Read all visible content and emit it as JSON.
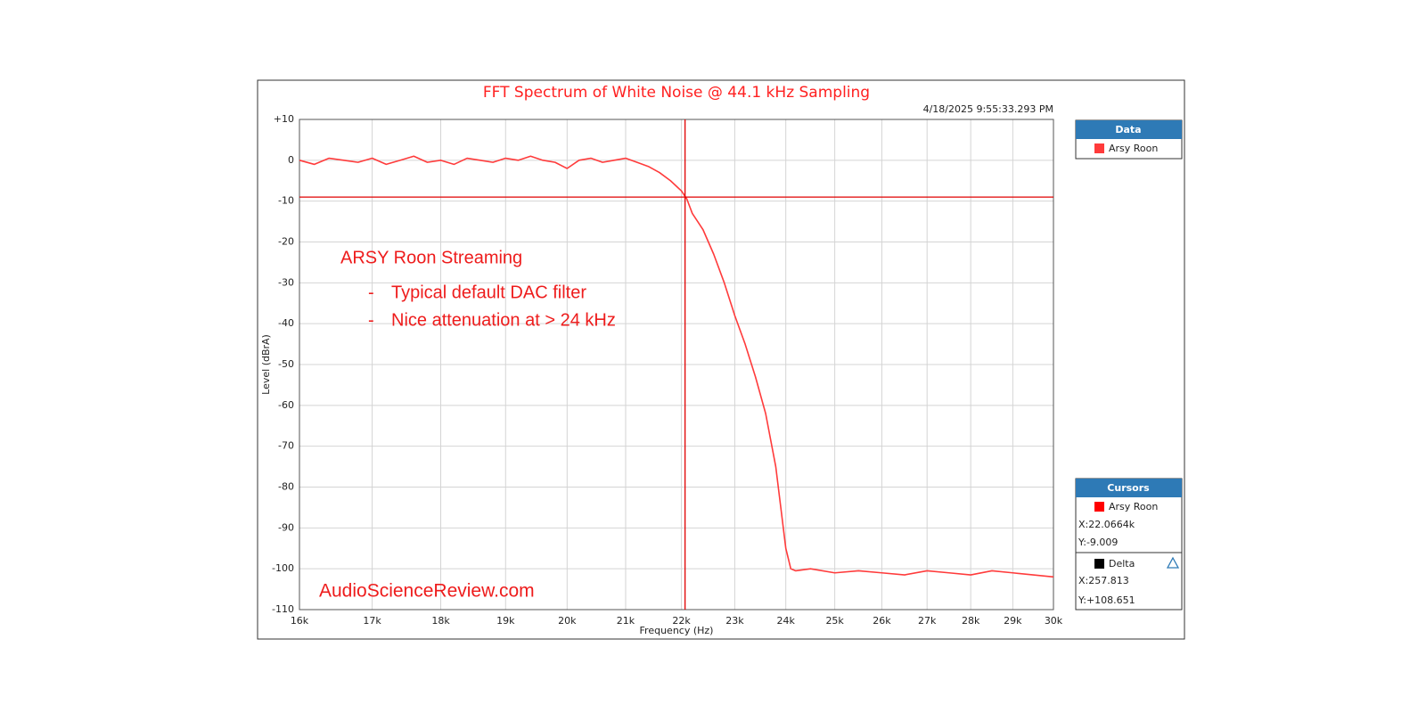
{
  "chart_data": {
    "type": "line",
    "title": "FFT Spectrum of White Noise @ 44.1 kHz Sampling",
    "timestamp": "4/18/2025 9:55:33.293 PM",
    "logo": "AP",
    "xlabel": "Frequency (Hz)",
    "ylabel": "Level (dBrA)",
    "xscale": "log",
    "grid": true,
    "xlim": [
      16000,
      30000
    ],
    "ylim": [
      -110,
      10
    ],
    "xticks": [
      {
        "value": 16000,
        "label": "16k"
      },
      {
        "value": 17000,
        "label": "17k"
      },
      {
        "value": 18000,
        "label": "18k"
      },
      {
        "value": 19000,
        "label": "19k"
      },
      {
        "value": 20000,
        "label": "20k"
      },
      {
        "value": 21000,
        "label": "21k"
      },
      {
        "value": 22000,
        "label": "22k"
      },
      {
        "value": 23000,
        "label": "23k"
      },
      {
        "value": 24000,
        "label": "24k"
      },
      {
        "value": 25000,
        "label": "25k"
      },
      {
        "value": 26000,
        "label": "26k"
      },
      {
        "value": 27000,
        "label": "27k"
      },
      {
        "value": 28000,
        "label": "28k"
      },
      {
        "value": 29000,
        "label": "29k"
      },
      {
        "value": 30000,
        "label": "30k"
      }
    ],
    "yticks": [
      {
        "value": 10,
        "label": "+10"
      },
      0,
      -10,
      -20,
      -30,
      -40,
      -50,
      -60,
      -70,
      -80,
      -90,
      -100,
      -110
    ],
    "x": [
      16000,
      16200,
      16400,
      16600,
      16800,
      17000,
      17200,
      17400,
      17600,
      17800,
      18000,
      18200,
      18400,
      18600,
      18800,
      19000,
      19200,
      19400,
      19600,
      19800,
      20000,
      20200,
      20400,
      20600,
      20800,
      21000,
      21200,
      21400,
      21600,
      21800,
      22000,
      22100,
      22200,
      22300,
      22400,
      22600,
      22800,
      23000,
      23200,
      23400,
      23600,
      23800,
      23900,
      24000,
      24100,
      24200,
      24500,
      25000,
      25500,
      26000,
      26500,
      27000,
      27500,
      28000,
      28500,
      29000,
      29500,
      30000
    ],
    "series": [
      {
        "name": "Arsy Roon",
        "color": "#ff3b3b",
        "values": [
          0,
          -1,
          0.5,
          0,
          -0.5,
          0.5,
          -1,
          0,
          1,
          -0.5,
          0,
          -1,
          0.5,
          0,
          -0.5,
          0.5,
          0,
          1,
          0,
          -0.5,
          -2,
          0,
          0.5,
          -0.5,
          0,
          0.5,
          -0.5,
          -1.5,
          -3,
          -5,
          -7.5,
          -9.5,
          -13,
          -15,
          -17,
          -23,
          -30,
          -38,
          -45,
          -53,
          -62,
          -75,
          -85,
          -95,
          -100,
          -100.5,
          -100,
          -101,
          -100.5,
          -101,
          -101.5,
          -100.5,
          -101,
          -101.5,
          -100.5,
          -101,
          -101.5,
          -102
        ]
      }
    ],
    "legend_title": "Data",
    "cursors": {
      "title": "Cursors",
      "name": "Arsy Roon",
      "x": {
        "value": 22066.4,
        "label": "X:22.0664k"
      },
      "y": {
        "value": -9.009,
        "label": "Y:-9.009"
      },
      "delta_title": "Delta",
      "delta_x": "X:257.813",
      "delta_y": "Y:+108.651"
    },
    "annotations": [
      "ARSY Roon Streaming",
      "-",
      "Typical default DAC filter",
      "-",
      "Nice attenuation at > 24 kHz",
      "AudioScienceReview.com"
    ]
  }
}
